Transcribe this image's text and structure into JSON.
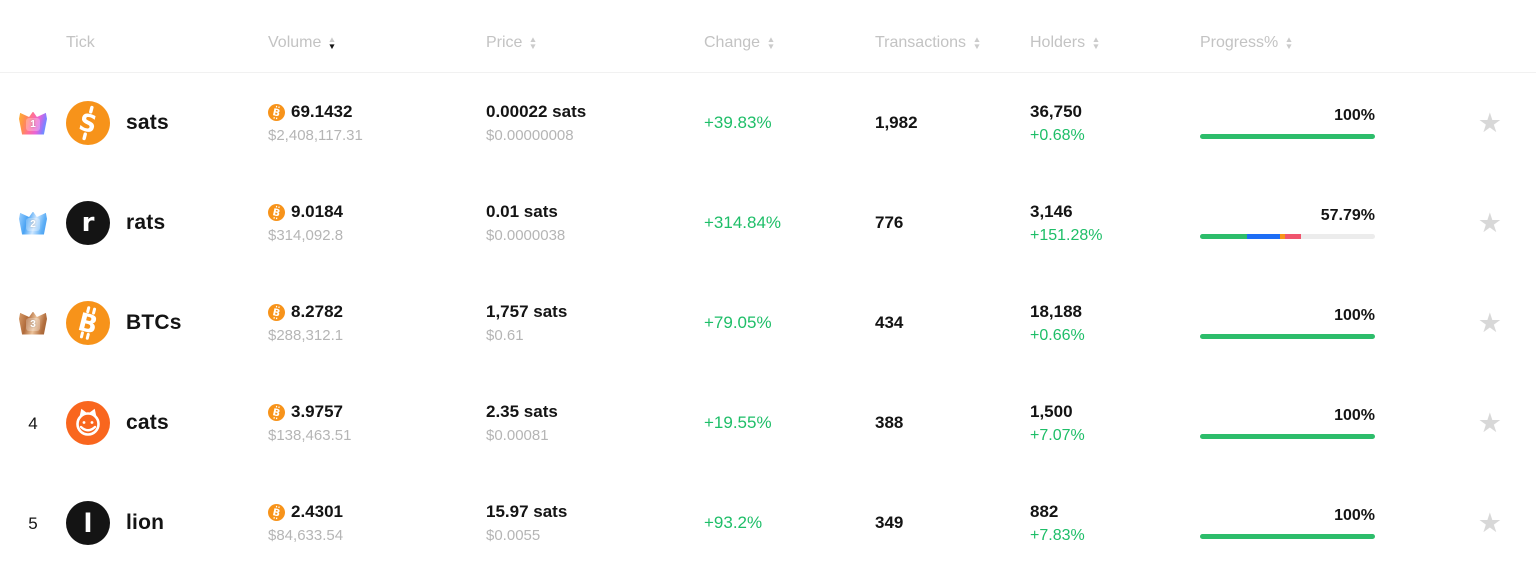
{
  "header": {
    "columns": [
      {
        "label": "Tick",
        "sortable": false
      },
      {
        "label": "Volume",
        "sortable": true,
        "sort": "desc"
      },
      {
        "label": "Price",
        "sortable": true
      },
      {
        "label": "Change",
        "sortable": true
      },
      {
        "label": "Transactions",
        "sortable": true
      },
      {
        "label": "Holders",
        "sortable": true
      },
      {
        "label": "Progress%",
        "sortable": true
      }
    ]
  },
  "rows": [
    {
      "rank": "1",
      "rank_badge": "gold",
      "tick": "sats",
      "icon": "sats-token-icon",
      "volume_btc": "69.1432",
      "volume_usd": "$2,408,117.31",
      "price": "0.00022 sats",
      "price_usd": "$0.00000008",
      "change": "+39.83%",
      "transactions": "1,982",
      "holders": "36,750",
      "holders_change": "+0.68%",
      "progress": {
        "label": "100%",
        "segments": [
          {
            "color": "#2dbd6b",
            "pct": 100
          }
        ]
      }
    },
    {
      "rank": "2",
      "rank_badge": "silver",
      "tick": "rats",
      "icon": "rats-token-icon",
      "volume_btc": "9.0184",
      "volume_usd": "$314,092.8",
      "price": "0.01 sats",
      "price_usd": "$0.0000038",
      "change": "+314.84%",
      "transactions": "776",
      "holders": "3,146",
      "holders_change": "+151.28%",
      "progress": {
        "label": "57.79%",
        "segments": [
          {
            "color": "#2dbd6b",
            "pct": 27
          },
          {
            "color": "#1e6ef5",
            "pct": 18.5
          },
          {
            "color": "#f7931a",
            "pct": 2.9
          },
          {
            "color": "#f0556e",
            "pct": 9.4
          }
        ]
      }
    },
    {
      "rank": "3",
      "rank_badge": "bronze",
      "tick": "BTCs",
      "icon": "btcs-token-icon",
      "volume_btc": "8.2782",
      "volume_usd": "$288,312.1",
      "price": "1,757 sats",
      "price_usd": "$0.61",
      "change": "+79.05%",
      "transactions": "434",
      "holders": "18,188",
      "holders_change": "+0.66%",
      "progress": {
        "label": "100%",
        "segments": [
          {
            "color": "#2dbd6b",
            "pct": 100
          }
        ]
      }
    },
    {
      "rank": "4",
      "rank_badge": null,
      "tick": "cats",
      "icon": "cats-token-icon",
      "volume_btc": "3.9757",
      "volume_usd": "$138,463.51",
      "price": "2.35 sats",
      "price_usd": "$0.00081",
      "change": "+19.55%",
      "transactions": "388",
      "holders": "1,500",
      "holders_change": "+7.07%",
      "progress": {
        "label": "100%",
        "segments": [
          {
            "color": "#2dbd6b",
            "pct": 100
          }
        ]
      }
    },
    {
      "rank": "5",
      "rank_badge": null,
      "tick": "lion",
      "icon": "lion-token-icon",
      "volume_btc": "2.4301",
      "volume_usd": "$84,633.54",
      "price": "15.97 sats",
      "price_usd": "$0.0055",
      "change": "+93.2%",
      "transactions": "349",
      "holders": "882",
      "holders_change": "+7.83%",
      "progress": {
        "label": "100%",
        "segments": [
          {
            "color": "#2dbd6b",
            "pct": 100
          }
        ]
      }
    }
  ],
  "colors": {
    "bitcoin_orange": "#f7931a",
    "positive_green": "#1ebe68",
    "progress_green": "#2dbd6b",
    "progress_track": "#ececec",
    "star_gray": "#d8d8d8",
    "header_gray": "#c3c3c3"
  }
}
